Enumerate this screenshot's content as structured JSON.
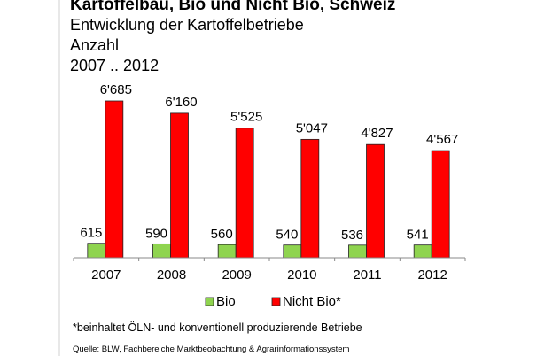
{
  "chart_data": {
    "type": "bar",
    "title": "Kartoffelbau, Bio und Nicht Bio, Schweiz",
    "subtitle": "Entwicklung der Kartoffelbetriebe",
    "unit_label": "Anzahl",
    "period": "2007 .. 2012",
    "categories": [
      "2007",
      "2008",
      "2009",
      "2010",
      "2011",
      "2012"
    ],
    "series": [
      {
        "name": "Bio",
        "color": "#8fd44f",
        "values": [
          615,
          590,
          560,
          540,
          536,
          541
        ],
        "labels": [
          "615",
          "590",
          "560",
          "540",
          "536",
          "541"
        ]
      },
      {
        "name": "Nicht Bio*",
        "color": "#ff0000",
        "values": [
          6685,
          6160,
          5525,
          5047,
          4827,
          4567
        ],
        "labels": [
          "6'685",
          "6'160",
          "5'525",
          "5'047",
          "4'827",
          "4'567"
        ]
      }
    ],
    "ylim": [
      0,
      7000
    ],
    "grid": false,
    "legend": "bottom",
    "footnote": "*beinhaltet ÖLN- und konventionell produzierende Betriebe",
    "source": "Quelle: BLW, Fachbereiche Marktbeobachtung & Agrarinformationssystem"
  }
}
